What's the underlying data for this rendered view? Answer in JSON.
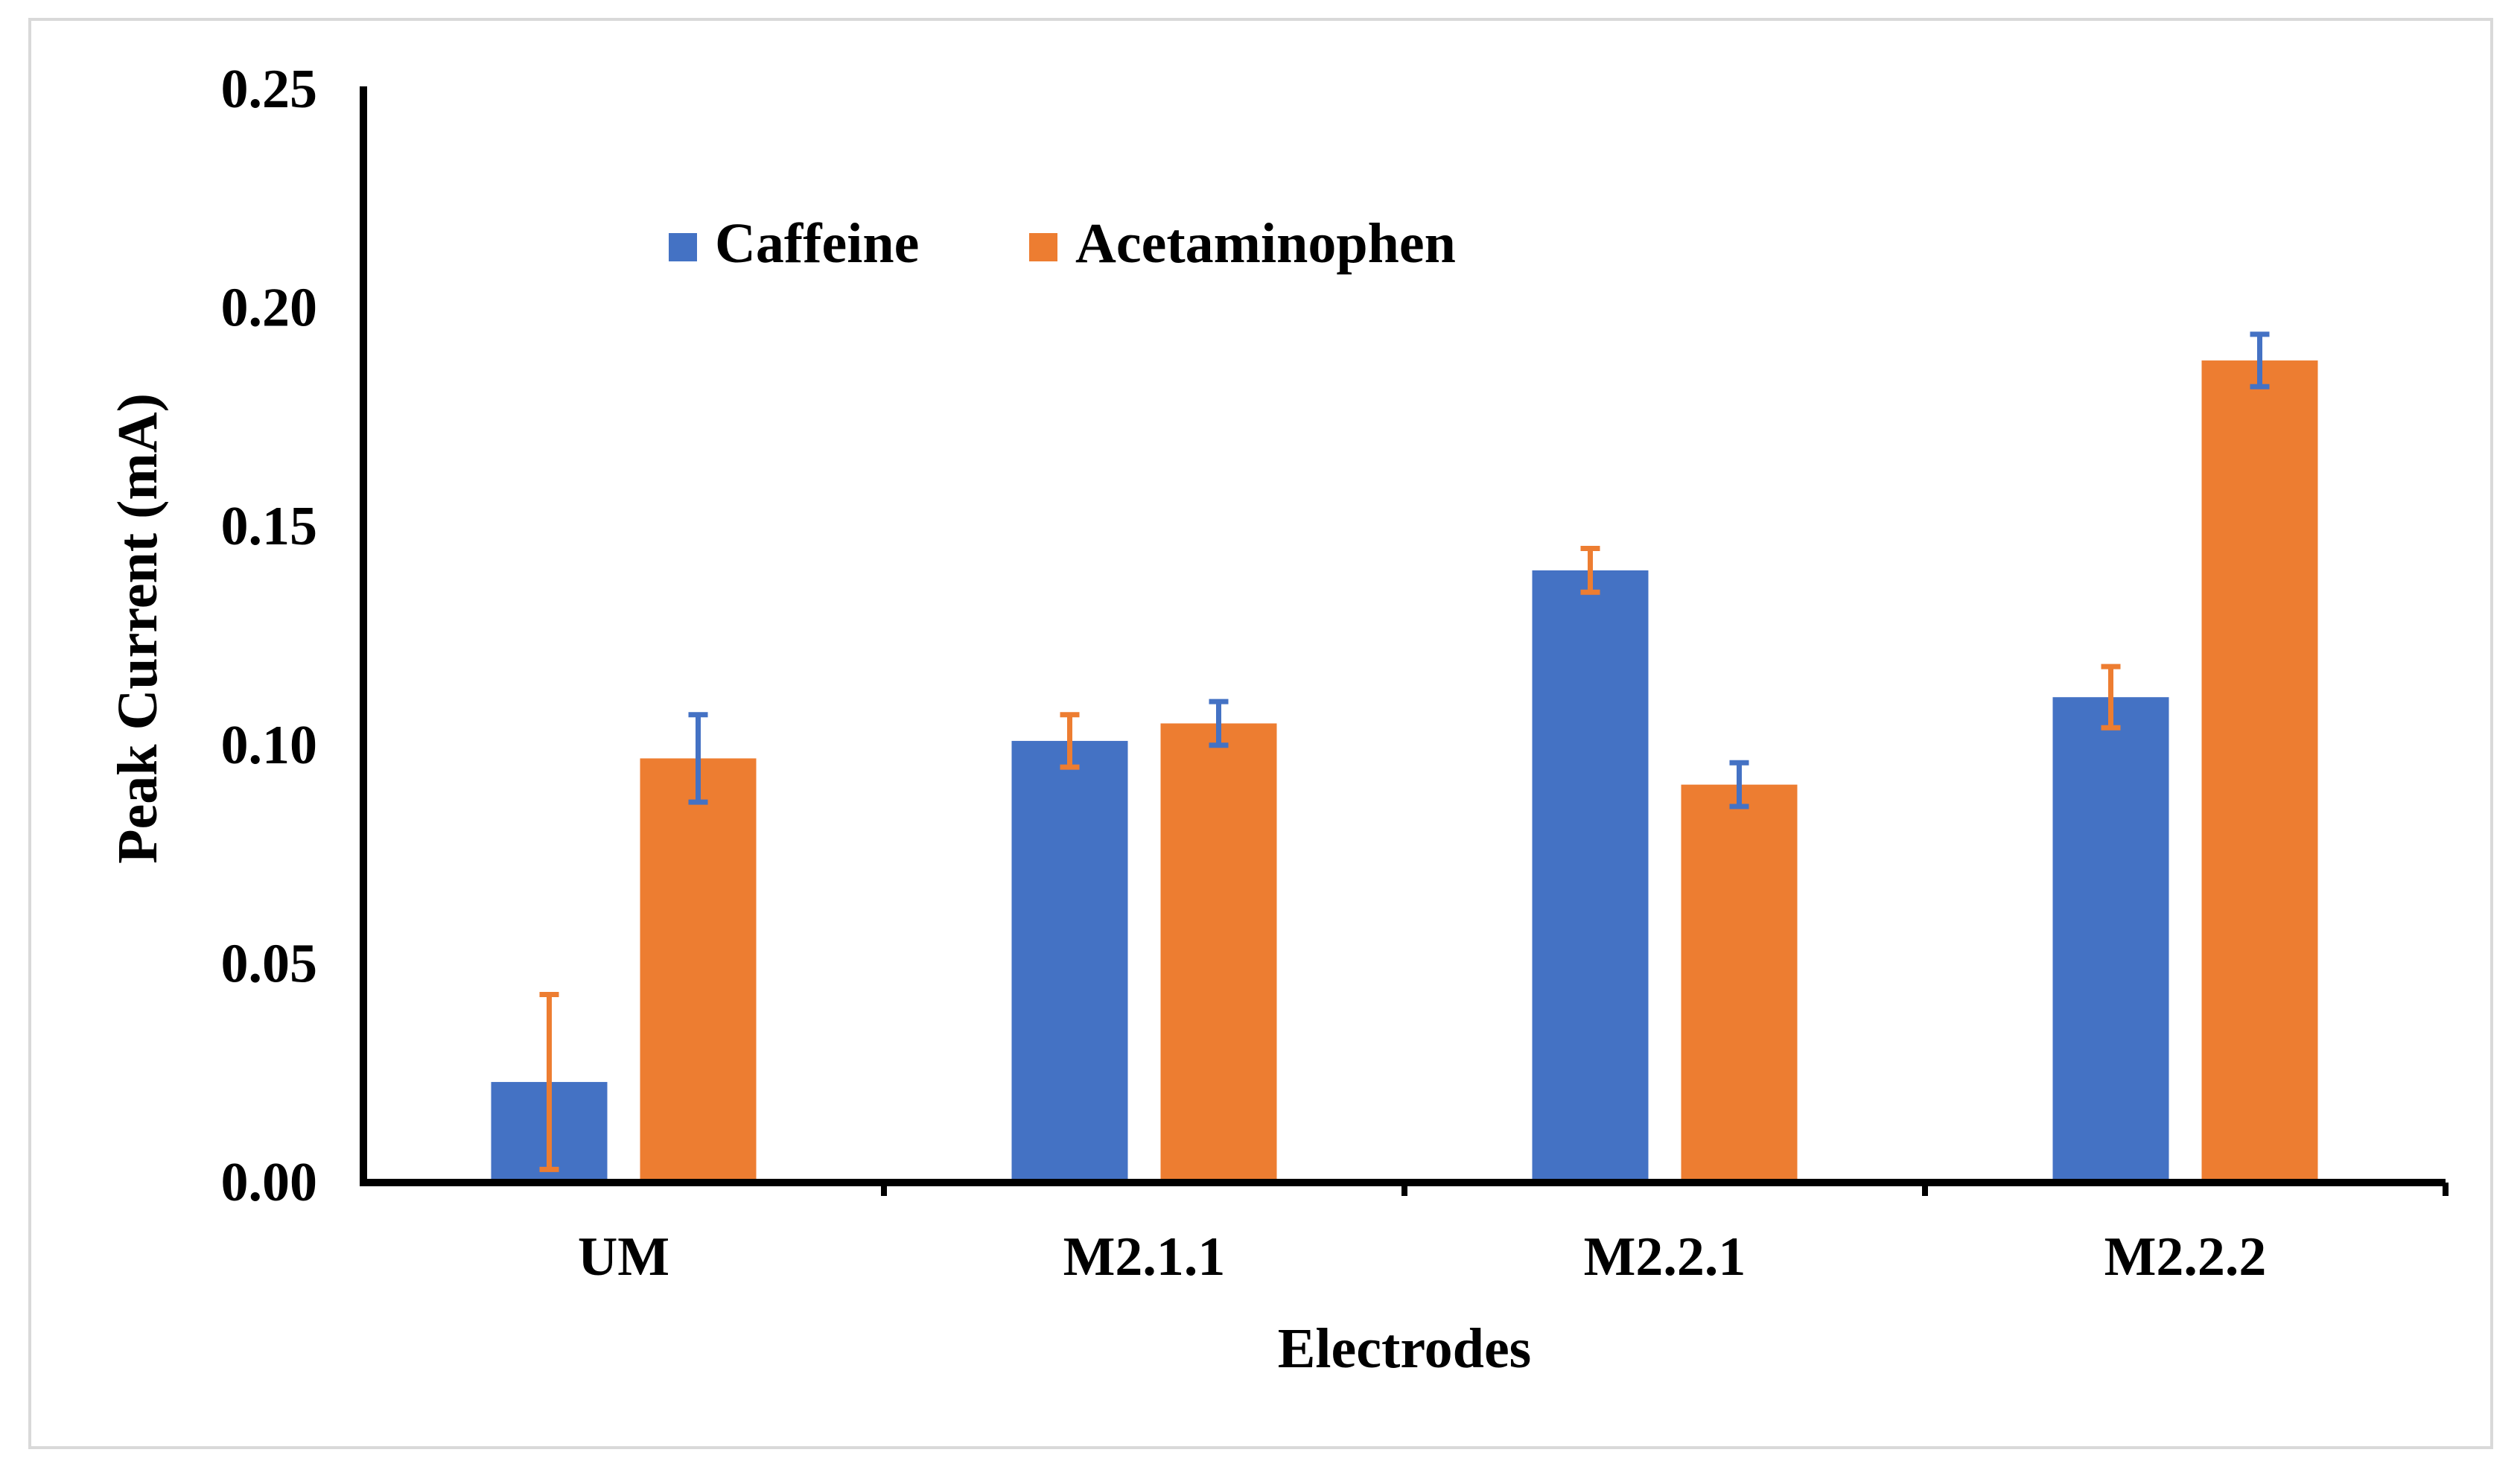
{
  "chart_data": {
    "type": "bar",
    "title": "",
    "xlabel": "Electrodes",
    "ylabel": "Peak Current (mA)",
    "categories": [
      "UM",
      "M2.1.1",
      "M2.2.1",
      "M2.2.2"
    ],
    "ylim": [
      0,
      0.25
    ],
    "yticks": [
      "0.00",
      "0.05",
      "0.10",
      "0.15",
      "0.20",
      "0.25"
    ],
    "legend_position": "top-left",
    "grid": false,
    "series": [
      {
        "name": "Caffeine",
        "color": "#4472c4",
        "error_color": "#ed7d31",
        "values": [
          0.023,
          0.101,
          0.14,
          0.111
        ],
        "errors": [
          0.02,
          0.006,
          0.005,
          0.007
        ]
      },
      {
        "name": "Acetaminophen",
        "color": "#ed7d31",
        "error_color": "#4472c4",
        "values": [
          0.097,
          0.105,
          0.091,
          0.188
        ],
        "errors": [
          0.01,
          0.005,
          0.005,
          0.006
        ]
      }
    ]
  }
}
